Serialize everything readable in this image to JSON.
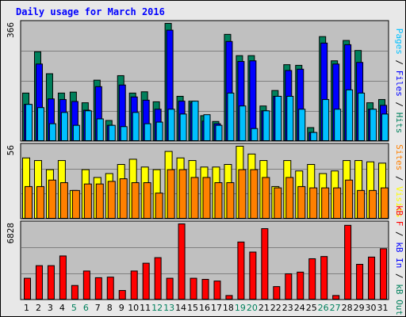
{
  "title": "Daily usage for March 2016",
  "colors": {
    "hits": "#00805c",
    "files": "#0000ff",
    "pages": "#00c0ff",
    "visits": "#ffff00",
    "sites": "#ff8000",
    "kbin": "#ff0000",
    "weekday": "#000000",
    "weekend": "#00805c",
    "panel": "#c0c0c0"
  },
  "chart_data": [
    {
      "type": "bar",
      "panel": "top",
      "ymax_label": "366",
      "ymax": 366,
      "right_labels": [
        {
          "text": "Pages",
          "color": "#00c0ff"
        },
        {
          "text": " / ",
          "color": "#000000"
        },
        {
          "text": "Files",
          "color": "#0000ff"
        },
        {
          "text": " / ",
          "color": "#000000"
        },
        {
          "text": "Hits",
          "color": "#00805c"
        }
      ],
      "categories": [
        "1",
        "2",
        "3",
        "4",
        "5",
        "6",
        "7",
        "8",
        "9",
        "10",
        "11",
        "12",
        "13",
        "14",
        "15",
        "16",
        "17",
        "18",
        "19",
        "20",
        "21",
        "22",
        "23",
        "24",
        "25",
        "26",
        "27",
        "28",
        "29",
        "30",
        "31"
      ],
      "weekend_days": [
        "5",
        "6",
        "12",
        "13",
        "19",
        "20",
        "26",
        "27"
      ],
      "series": [
        {
          "name": "Hits",
          "values": [
            150,
            278,
            210,
            150,
            153,
            120,
            190,
            65,
            204,
            150,
            154,
            123,
            366,
            140,
            125,
            80,
            62,
            332,
            266,
            266,
            110,
            158,
            238,
            236,
            43,
            325,
            250,
            313,
            282,
            120,
            130
          ]
        },
        {
          "name": "Files",
          "values": [
            115,
            240,
            132,
            130,
            124,
            97,
            170,
            50,
            175,
            138,
            128,
            100,
            345,
            125,
            120,
            63,
            55,
            310,
            248,
            250,
            95,
            140,
            220,
            224,
            28,
            305,
            240,
            300,
            245,
            100,
            112
          ]
        },
        {
          "name": "Pages",
          "values": [
            115,
            105,
            55,
            90,
            50,
            95,
            70,
            50,
            46,
            90,
            55,
            60,
            100,
            85,
            125,
            83,
            50,
            150,
            110,
            40,
            95,
            140,
            140,
            100,
            28,
            130,
            100,
            160,
            150,
            100,
            85
          ]
        }
      ]
    },
    {
      "type": "bar",
      "panel": "middle",
      "ymax_label": "56",
      "ymax": 56,
      "right_labels": [
        {
          "text": "Sites",
          "color": "#ff8000"
        },
        {
          "text": " / ",
          "color": "#000000"
        },
        {
          "text": "Visits",
          "color": "#ffff00"
        }
      ],
      "categories": [
        "1",
        "2",
        "3",
        "4",
        "5",
        "6",
        "7",
        "8",
        "9",
        "10",
        "11",
        "12",
        "13",
        "14",
        "15",
        "16",
        "17",
        "18",
        "19",
        "20",
        "21",
        "22",
        "23",
        "24",
        "25",
        "26",
        "27",
        "28",
        "29",
        "30",
        "31"
      ],
      "series": [
        {
          "name": "Visits",
          "values": [
            47,
            45,
            38,
            45,
            22,
            38,
            32,
            35,
            42,
            46,
            40,
            38,
            52,
            47,
            45,
            40,
            40,
            42,
            56,
            50,
            45,
            25,
            45,
            37,
            42,
            35,
            37,
            45,
            45,
            44,
            43
          ]
        },
        {
          "name": "Sites",
          "values": [
            25,
            25,
            30,
            28,
            22,
            27,
            27,
            29,
            31,
            28,
            28,
            20,
            38,
            38,
            32,
            32,
            28,
            28,
            38,
            38,
            32,
            24,
            32,
            25,
            24,
            24,
            24,
            30,
            22,
            22,
            24
          ]
        }
      ]
    },
    {
      "type": "bar",
      "panel": "bottom",
      "ymax_label": "6828",
      "ymax": 6828,
      "right_labels": [
        {
          "text": "kB F",
          "color": "#ff0000"
        },
        {
          "text": " / ",
          "color": "#000000"
        },
        {
          "text": "kB In",
          "color": "#0000ff"
        },
        {
          "text": " / ",
          "color": "#000000"
        },
        {
          "text": "kB Out",
          "color": "#00805c"
        }
      ],
      "categories": [
        "1",
        "2",
        "3",
        "4",
        "5",
        "6",
        "7",
        "8",
        "9",
        "10",
        "11",
        "12",
        "13",
        "14",
        "15",
        "16",
        "17",
        "18",
        "19",
        "20",
        "21",
        "22",
        "23",
        "24",
        "25",
        "26",
        "27",
        "28",
        "29",
        "30",
        "31"
      ],
      "series": [
        {
          "name": "kB F",
          "values": [
            1950,
            3080,
            3080,
            3950,
            1300,
            2600,
            2000,
            2050,
            850,
            2600,
            3300,
            3800,
            1950,
            6828,
            1950,
            1850,
            1700,
            400,
            5200,
            4300,
            6400,
            1200,
            2350,
            2500,
            3700,
            3900,
            400,
            6700,
            3200,
            3850,
            4600
          ]
        }
      ]
    }
  ]
}
